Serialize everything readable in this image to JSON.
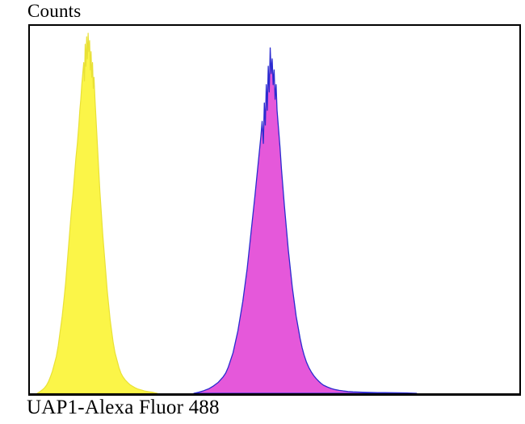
{
  "chart_data": {
    "type": "area",
    "subtype": "flow-cytometry-histogram",
    "title": "",
    "ylabel": "Counts",
    "xlabel": "UAP1-Alexa Fluor 488",
    "legend": "none",
    "grid": false,
    "axes": {
      "x": {
        "tick_labels_visible": false,
        "units": "percent-of-axis",
        "range": [
          0,
          100
        ]
      },
      "y": {
        "tick_labels_visible": false,
        "units": "percent-of-max-count",
        "range": [
          0,
          100
        ]
      }
    },
    "border_color": "#000000",
    "series": [
      {
        "id": "yellow-histogram",
        "name": "negative control peak (yellow)",
        "fill": "#FBF548",
        "stroke": "#E9E136",
        "stroke_width": 1.2,
        "peak_x_percent": 11.9,
        "peak_y_percent": 98,
        "points": [
          [
            1.5,
            0
          ],
          [
            2.0,
            0.4
          ],
          [
            2.5,
            0.9
          ],
          [
            3.0,
            1.5
          ],
          [
            3.4,
            2.2
          ],
          [
            3.8,
            3.2
          ],
          [
            4.2,
            4.5
          ],
          [
            4.6,
            6
          ],
          [
            5.0,
            8
          ],
          [
            5.4,
            10
          ],
          [
            5.8,
            13
          ],
          [
            6.2,
            17
          ],
          [
            6.6,
            21
          ],
          [
            7.0,
            26
          ],
          [
            7.3,
            30
          ],
          [
            7.6,
            35
          ],
          [
            7.9,
            40
          ],
          [
            8.2,
            45
          ],
          [
            8.5,
            50
          ],
          [
            8.8,
            54
          ],
          [
            9.1,
            59
          ],
          [
            9.4,
            64
          ],
          [
            9.7,
            68
          ],
          [
            10.0,
            73
          ],
          [
            10.2,
            77
          ],
          [
            10.4,
            80
          ],
          [
            10.6,
            84
          ],
          [
            10.8,
            87
          ],
          [
            11.0,
            90
          ],
          [
            11.15,
            85
          ],
          [
            11.3,
            95
          ],
          [
            11.45,
            89
          ],
          [
            11.6,
            97
          ],
          [
            11.75,
            91
          ],
          [
            11.9,
            98
          ],
          [
            12.05,
            93
          ],
          [
            12.2,
            96
          ],
          [
            12.35,
            88
          ],
          [
            12.5,
            93
          ],
          [
            12.65,
            86
          ],
          [
            12.8,
            90
          ],
          [
            12.95,
            83
          ],
          [
            13.1,
            86
          ],
          [
            13.3,
            80
          ],
          [
            13.5,
            75
          ],
          [
            13.7,
            70
          ],
          [
            13.9,
            65
          ],
          [
            14.1,
            60
          ],
          [
            14.3,
            55
          ],
          [
            14.6,
            49
          ],
          [
            14.9,
            43
          ],
          [
            15.2,
            38
          ],
          [
            15.5,
            33
          ],
          [
            15.8,
            28
          ],
          [
            16.1,
            24
          ],
          [
            16.4,
            20
          ],
          [
            16.7,
            17
          ],
          [
            17.0,
            14
          ],
          [
            17.4,
            11
          ],
          [
            17.8,
            9
          ],
          [
            18.2,
            7
          ],
          [
            18.6,
            5.5
          ],
          [
            19.0,
            4.5
          ],
          [
            19.5,
            3.6
          ],
          [
            20.0,
            2.9
          ],
          [
            20.5,
            2.3
          ],
          [
            21.0,
            1.9
          ],
          [
            21.5,
            1.5
          ],
          [
            22.0,
            1.2
          ],
          [
            22.5,
            1.0
          ],
          [
            23.0,
            0.8
          ],
          [
            23.5,
            0.6
          ],
          [
            24.0,
            0.5
          ],
          [
            24.5,
            0.4
          ],
          [
            25.0,
            0.3
          ],
          [
            25.5,
            0.15
          ],
          [
            26.0,
            0
          ]
        ]
      },
      {
        "id": "magenta-histogram",
        "name": "UAP1-Alexa Fluor 488 stained peak (magenta, blue outline)",
        "fill": "#E558DA",
        "stroke": "#2B2BD0",
        "stroke_width": 1.3,
        "peak_x_percent": 49.1,
        "peak_y_percent": 94,
        "points": [
          [
            33.5,
            0
          ],
          [
            34.5,
            0.3
          ],
          [
            35.5,
            0.7
          ],
          [
            36.5,
            1.2
          ],
          [
            37.5,
            2
          ],
          [
            38.5,
            3
          ],
          [
            39.5,
            4.5
          ],
          [
            40.0,
            5.5
          ],
          [
            40.5,
            7
          ],
          [
            41.0,
            9
          ],
          [
            41.5,
            11
          ],
          [
            42.0,
            14
          ],
          [
            42.5,
            17
          ],
          [
            43.0,
            21
          ],
          [
            43.5,
            25
          ],
          [
            44.0,
            30
          ],
          [
            44.4,
            34
          ],
          [
            44.8,
            39
          ],
          [
            45.2,
            44
          ],
          [
            45.6,
            49
          ],
          [
            46.0,
            54
          ],
          [
            46.3,
            58
          ],
          [
            46.6,
            62
          ],
          [
            46.9,
            66
          ],
          [
            47.2,
            70
          ],
          [
            47.45,
            74
          ],
          [
            47.7,
            68
          ],
          [
            47.9,
            79
          ],
          [
            48.1,
            73
          ],
          [
            48.3,
            84
          ],
          [
            48.5,
            77
          ],
          [
            48.7,
            89
          ],
          [
            48.9,
            82
          ],
          [
            49.1,
            94
          ],
          [
            49.3,
            87
          ],
          [
            49.5,
            91
          ],
          [
            49.7,
            84
          ],
          [
            49.9,
            88
          ],
          [
            50.1,
            80
          ],
          [
            50.3,
            84
          ],
          [
            50.5,
            77
          ],
          [
            50.8,
            72
          ],
          [
            51.1,
            67
          ],
          [
            51.4,
            61
          ],
          [
            51.7,
            56
          ],
          [
            52.0,
            51
          ],
          [
            52.4,
            45
          ],
          [
            52.8,
            39
          ],
          [
            53.2,
            34
          ],
          [
            53.6,
            29
          ],
          [
            54.0,
            25
          ],
          [
            54.4,
            21
          ],
          [
            54.8,
            18
          ],
          [
            55.2,
            15
          ],
          [
            55.6,
            12.5
          ],
          [
            56.0,
            10.5
          ],
          [
            56.5,
            8.5
          ],
          [
            57.0,
            7
          ],
          [
            57.5,
            5.8
          ],
          [
            58.0,
            4.8
          ],
          [
            58.5,
            4
          ],
          [
            59.0,
            3.3
          ],
          [
            59.5,
            2.7
          ],
          [
            60.0,
            2.2
          ],
          [
            60.8,
            1.7
          ],
          [
            61.6,
            1.3
          ],
          [
            62.4,
            1.0
          ],
          [
            63.2,
            0.8
          ],
          [
            64.0,
            0.65
          ],
          [
            65.0,
            0.5
          ],
          [
            66.0,
            0.4
          ],
          [
            67.0,
            0.35
          ],
          [
            68.0,
            0.3
          ],
          [
            69.5,
            0.25
          ],
          [
            71.0,
            0.2
          ],
          [
            72.5,
            0.18
          ],
          [
            74.0,
            0.15
          ],
          [
            75.5,
            0.12
          ],
          [
            77.0,
            0.1
          ],
          [
            78.0,
            0.05
          ],
          [
            79.0,
            0
          ]
        ]
      }
    ]
  }
}
